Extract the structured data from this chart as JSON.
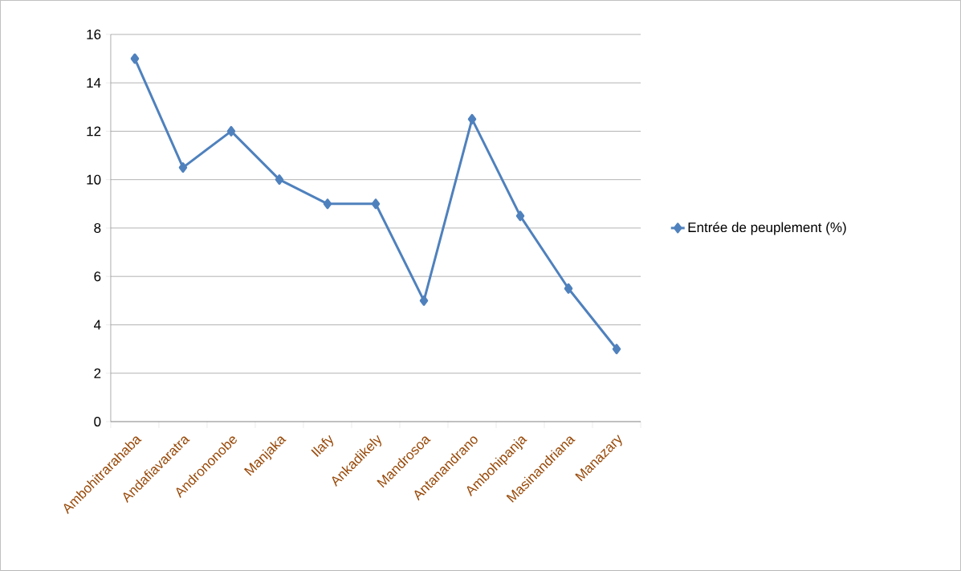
{
  "chart_data": {
    "type": "line",
    "categories": [
      "Ambohitrarahaba",
      "Andafiavaratra",
      "Andrononobe",
      "Manjaka",
      "Ilafy",
      "Ankadikely",
      "Mandrosoa",
      "Antanandrano",
      "Ambohipanja",
      "Masinandriana",
      "Manazary"
    ],
    "series": [
      {
        "name": "Entrée de peuplement (%)",
        "color": "#4f81bd",
        "values": [
          15,
          10.5,
          12,
          10,
          9,
          9,
          5,
          12.5,
          8.5,
          5.5,
          3
        ]
      }
    ],
    "ylim": [
      0,
      16
    ],
    "yticks": [
      0,
      2,
      4,
      6,
      8,
      10,
      12,
      14,
      16
    ],
    "grid": "y",
    "legend": "right",
    "marker": "diamond",
    "line_style": "solid"
  }
}
